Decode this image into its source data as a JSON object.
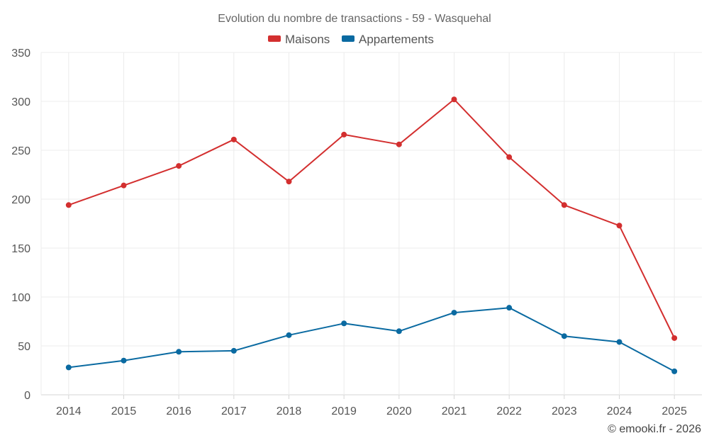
{
  "chart_data": {
    "type": "line",
    "title": "Evolution du nombre de transactions - 59 - Wasquehal",
    "categories": [
      "2014",
      "2015",
      "2016",
      "2017",
      "2018",
      "2019",
      "2020",
      "2021",
      "2022",
      "2023",
      "2024",
      "2025"
    ],
    "series": [
      {
        "name": "Maisons",
        "color": "#d32f2f",
        "values": [
          194,
          214,
          234,
          261,
          218,
          266,
          256,
          302,
          243,
          194,
          173,
          58
        ]
      },
      {
        "name": "Appartements",
        "color": "#0a6aa1",
        "values": [
          28,
          35,
          44,
          45,
          61,
          73,
          65,
          84,
          89,
          60,
          54,
          24
        ]
      }
    ],
    "ylim": [
      0,
      350
    ],
    "yticks": [
      0,
      50,
      100,
      150,
      200,
      250,
      300,
      350
    ],
    "grid": true,
    "legend_position": "top-center",
    "xlabel": "",
    "ylabel": ""
  },
  "credit": "© emooki.fr - 2026"
}
